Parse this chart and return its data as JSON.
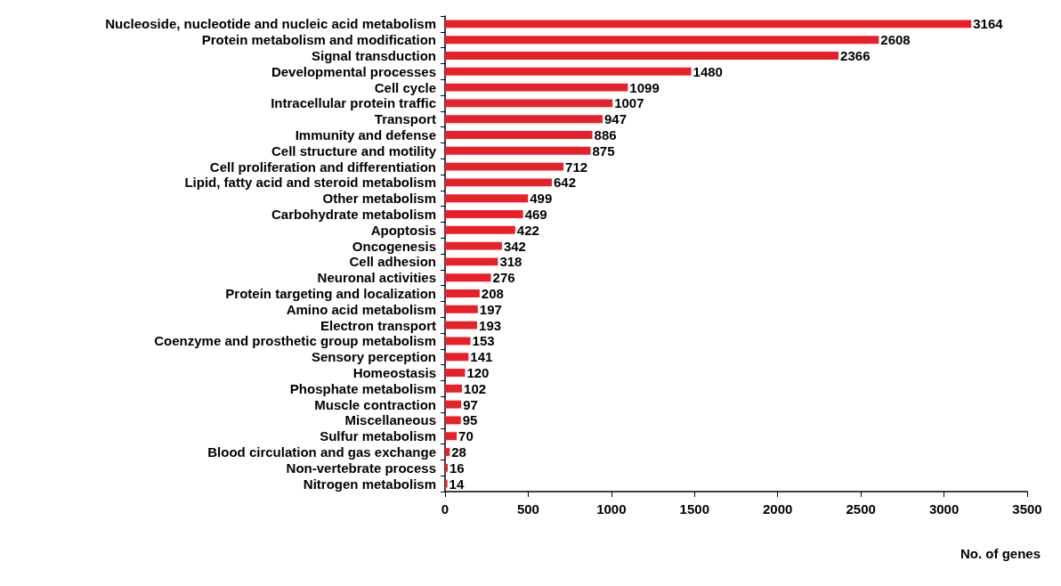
{
  "chart_data": {
    "type": "bar",
    "orientation": "horizontal",
    "xlabel": "No. of genes",
    "categories": [
      "Nucleoside, nucleotide and nucleic acid metabolism",
      "Protein metabolism and modification",
      "Signal transduction",
      "Developmental processes",
      "Cell cycle",
      "Intracellular protein traffic",
      "Transport",
      "Immunity and defense",
      "Cell structure and motility",
      "Cell proliferation and differentiation",
      "Lipid, fatty acid and steroid metabolism",
      "Other metabolism",
      "Carbohydrate metabolism",
      "Apoptosis",
      "Oncogenesis",
      "Cell adhesion",
      "Neuronal activities",
      "Protein targeting and localization",
      "Amino acid metabolism",
      "Electron transport",
      "Coenzyme and prosthetic group metabolism",
      "Sensory perception",
      "Homeostasis",
      "Phosphate metabolism",
      "Muscle contraction",
      "Miscellaneous",
      "Sulfur metabolism",
      "Blood circulation and gas exchange",
      "Non-vertebrate process",
      "Nitrogen metabolism"
    ],
    "values": [
      3164,
      2608,
      2366,
      1480,
      1099,
      1007,
      947,
      886,
      875,
      712,
      642,
      499,
      469,
      422,
      342,
      318,
      276,
      208,
      197,
      193,
      153,
      141,
      120,
      102,
      97,
      95,
      70,
      28,
      16,
      14
    ],
    "color": "#e8202a",
    "xlim": [
      0,
      3500
    ],
    "xticks": [
      0,
      500,
      1000,
      1500,
      2000,
      2500,
      3000,
      3500
    ],
    "data_labels": true,
    "grid": false
  }
}
